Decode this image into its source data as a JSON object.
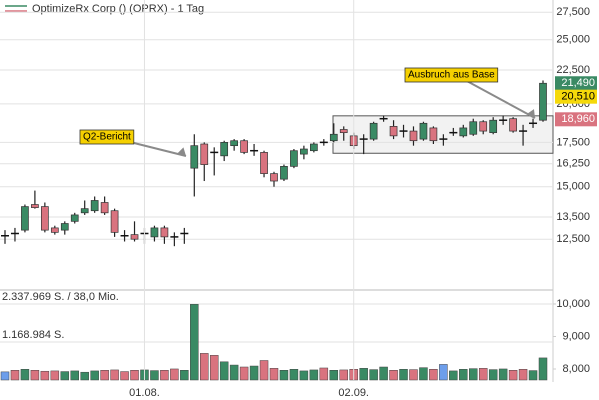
{
  "chart_data": {
    "type": "candlestick",
    "title": "OptimizeRx Corp () (OPRX) - 1 Tag",
    "categories": [
      null,
      null,
      null,
      null,
      null,
      null,
      null,
      null,
      null,
      null,
      null,
      null,
      null,
      null,
      "01.08.",
      null,
      null,
      null,
      null,
      null,
      null,
      null,
      null,
      null,
      null,
      null,
      null,
      null,
      null,
      null,
      null,
      null,
      null,
      null,
      null,
      "02.09.",
      null,
      null,
      null,
      null,
      null,
      null,
      null,
      null,
      null,
      null,
      null,
      null,
      null,
      null,
      null,
      null,
      null,
      null,
      null
    ],
    "open": [
      12650,
      12750,
      12900,
      14100,
      14000,
      13000,
      12900,
      13300,
      13700,
      13800,
      14200,
      13800,
      12650,
      12700,
      12750,
      12600,
      13000,
      12600,
      12750,
      16000,
      17400,
      16900,
      16700,
      17300,
      17600,
      17000,
      16900,
      15700,
      15400,
      16100,
      16800,
      17000,
      17500,
      17600,
      18300,
      17900,
      17700,
      17700,
      19000,
      18500,
      18200,
      18200,
      17700,
      18400,
      17700,
      18100,
      17900,
      18000,
      18800,
      18100,
      18900,
      19000,
      18200,
      18700,
      18900
    ],
    "high": [
      12900,
      13000,
      14100,
      14800,
      14200,
      13100,
      13300,
      13700,
      14300,
      14500,
      14500,
      13900,
      12900,
      13300,
      13000,
      13100,
      13100,
      12800,
      13000,
      18000,
      17500,
      17200,
      17600,
      17700,
      17700,
      17400,
      17000,
      15800,
      16200,
      17100,
      17300,
      17500,
      17700,
      18700,
      18500,
      18100,
      18000,
      18800,
      19200,
      18900,
      18600,
      18500,
      18800,
      18500,
      18000,
      18400,
      18600,
      19000,
      18900,
      19100,
      19200,
      19100,
      18600,
      19000,
      21700
    ],
    "low": [
      12300,
      12400,
      12800,
      13900,
      12800,
      12700,
      12700,
      13200,
      13600,
      13700,
      13600,
      12600,
      12400,
      12400,
      12300,
      12400,
      12300,
      12200,
      12300,
      14500,
      15300,
      15600,
      16400,
      17000,
      16800,
      16700,
      15500,
      15000,
      15300,
      16000,
      16500,
      16900,
      17300,
      17500,
      17600,
      17100,
      16800,
      17600,
      18800,
      17700,
      17800,
      17300,
      17600,
      17400,
      17300,
      17900,
      17800,
      17900,
      18000,
      18000,
      18600,
      18100,
      17300,
      18400,
      18800
    ],
    "close": [
      12650,
      12750,
      14000,
      13950,
      12900,
      12800,
      13200,
      13600,
      13900,
      14300,
      13700,
      12800,
      12650,
      12500,
      12750,
      13000,
      12600,
      12600,
      12750,
      17300,
      16200,
      16900,
      17500,
      17600,
      16900,
      17000,
      15700,
      15300,
      16100,
      17000,
      17100,
      17400,
      17500,
      18000,
      18100,
      17300,
      17700,
      18700,
      19000,
      17900,
      18200,
      17600,
      18700,
      17600,
      17700,
      18100,
      18400,
      18800,
      18200,
      18900,
      18900,
      18200,
      18200,
      18700,
      21490
    ],
    "colors": {
      "up": "#3a8a64",
      "down": "#d9737f",
      "flat": "#111111"
    },
    "ylim": [
      10550,
      28700
    ],
    "log_scale": true,
    "grid": true,
    "yticks": [
      {
        "value": 12500,
        "label": "12,500"
      },
      {
        "value": 13500,
        "label": "13,500"
      },
      {
        "value": 15000,
        "label": "15,000"
      },
      {
        "value": 16250,
        "label": "16,250"
      },
      {
        "value": 17500,
        "label": "17,500"
      },
      {
        "value": 20000,
        "label": "20,000"
      },
      {
        "value": 22500,
        "label": "22,500"
      },
      {
        "value": 25000,
        "label": "25,000"
      },
      {
        "value": 27500,
        "label": "27,500"
      }
    ],
    "price_labels": [
      {
        "value": 21490,
        "label": "21,490",
        "color": "#3a8a64"
      },
      {
        "value": 20510,
        "label": "20,510",
        "color": "#f5d90a"
      },
      {
        "value": 18960,
        "label": "18,960",
        "color": "#d9737f"
      }
    ],
    "annotations": [
      "Q2-Bericht",
      "Ausbruch aus Base"
    ],
    "base": {
      "low": 16850,
      "high": 19190
    },
    "volume": {
      "values": [
        250000,
        300000,
        330000,
        300000,
        270000,
        280000,
        260000,
        280000,
        240000,
        280000,
        300000,
        310000,
        260000,
        300000,
        310000,
        290000,
        300000,
        340000,
        300000,
        2330000,
        820000,
        760000,
        560000,
        460000,
        400000,
        430000,
        600000,
        360000,
        300000,
        330000,
        280000,
        310000,
        370000,
        300000,
        310000,
        330000,
        360000,
        320000,
        400000,
        300000,
        330000,
        320000,
        380000,
        330000,
        480000,
        280000,
        330000,
        350000,
        360000,
        320000,
        340000,
        300000,
        330000,
        290000,
        680000
      ],
      "colors": [
        "#6d9eeb",
        "#d9737f",
        "#3a8a64",
        "#d9737f",
        "#d9737f",
        "#d9737f",
        "#3a8a64",
        "#3a8a64",
        "#3a8a64",
        "#3a8a64",
        "#d9737f",
        "#d9737f",
        "#d9737f",
        "#d9737f",
        "#3a8a64",
        "#3a8a64",
        "#d9737f",
        "#d9737f",
        "#3a8a64",
        "#3a8a64",
        "#d9737f",
        "#d9737f",
        "#3a8a64",
        "#3a8a64",
        "#d9737f",
        "#3a8a64",
        "#d9737f",
        "#d9737f",
        "#3a8a64",
        "#3a8a64",
        "#3a8a64",
        "#3a8a64",
        "#d9737f",
        "#3a8a64",
        "#d9737f",
        "#d9737f",
        "#3a8a64",
        "#3a8a64",
        "#3a8a64",
        "#d9737f",
        "#3a8a64",
        "#d9737f",
        "#3a8a64",
        "#d9737f",
        "#6d9eeb",
        "#3a8a64",
        "#3a8a64",
        "#3a8a64",
        "#d9737f",
        "#3a8a64",
        "#3a8a64",
        "#d9737f",
        "#d9737f",
        "#3a8a64",
        "#3a8a64"
      ],
      "ylim": [
        0,
        2770000
      ],
      "yticks": [
        {
          "value": 2337969,
          "label": "2.337.969 S. / 38,0 Mio."
        },
        {
          "value": 1168984,
          "label": "1.168.984 S."
        }
      ],
      "y2lim": [
        7600,
        10430
      ],
      "y2ticks": [
        {
          "value": 10000,
          "label": "10,000"
        },
        {
          "value": 9000,
          "label": "9,000"
        },
        {
          "value": 8000,
          "label": "8,000"
        }
      ]
    }
  }
}
